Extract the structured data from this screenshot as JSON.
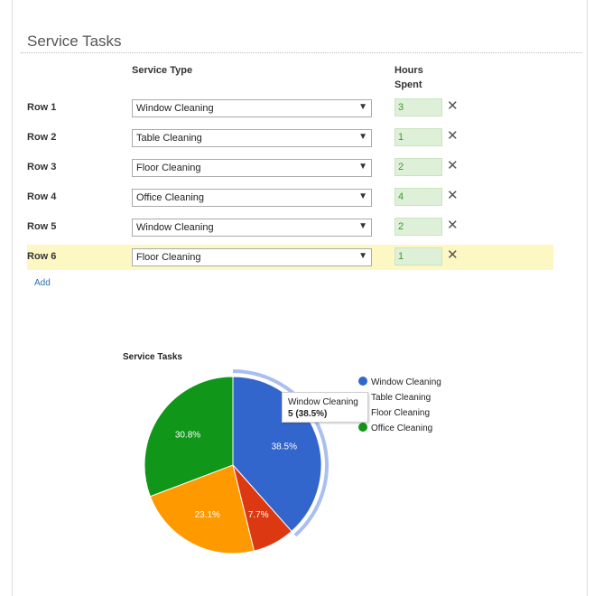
{
  "panel": {
    "title": "Service Tasks"
  },
  "table": {
    "header_service_type": "Service Type",
    "header_hours_1": "Hours",
    "header_hours_2": "Spent",
    "rows": [
      {
        "label": "Row 1",
        "service": "Window Cleaning",
        "hours": "3",
        "highlight": false
      },
      {
        "label": "Row 2",
        "service": "Table Cleaning",
        "hours": "1",
        "highlight": false
      },
      {
        "label": "Row 3",
        "service": "Floor Cleaning",
        "hours": "2",
        "highlight": false
      },
      {
        "label": "Row 4",
        "service": "Office Cleaning",
        "hours": "4",
        "highlight": false
      },
      {
        "label": "Row 5",
        "service": "Window Cleaning",
        "hours": "2",
        "highlight": false
      },
      {
        "label": "Row 6",
        "service": "Floor Cleaning",
        "hours": "1",
        "highlight": true
      }
    ],
    "remove_glyph": "✕",
    "dropdown_glyph": "▼"
  },
  "add_link": "Add",
  "colors": {
    "highlight_row": "#fdf7c3",
    "hours_bg": "#dff0d8",
    "link": "#2a6ebb"
  },
  "chart_data": {
    "type": "pie",
    "title": "Service Tasks",
    "categories": [
      "Window Cleaning",
      "Table Cleaning",
      "Floor Cleaning",
      "Office Cleaning"
    ],
    "values": [
      5,
      1,
      3,
      4
    ],
    "slice_labels": [
      "38.5%",
      "7.7%",
      "23.1%",
      "30.8%"
    ],
    "colors": [
      "#3366cc",
      "#dc3912",
      "#ff9900",
      "#109618"
    ],
    "legend": "right",
    "highlighted_slice": 0,
    "tooltip": {
      "label": "Window Cleaning",
      "value": "5 (38.5%)"
    }
  }
}
